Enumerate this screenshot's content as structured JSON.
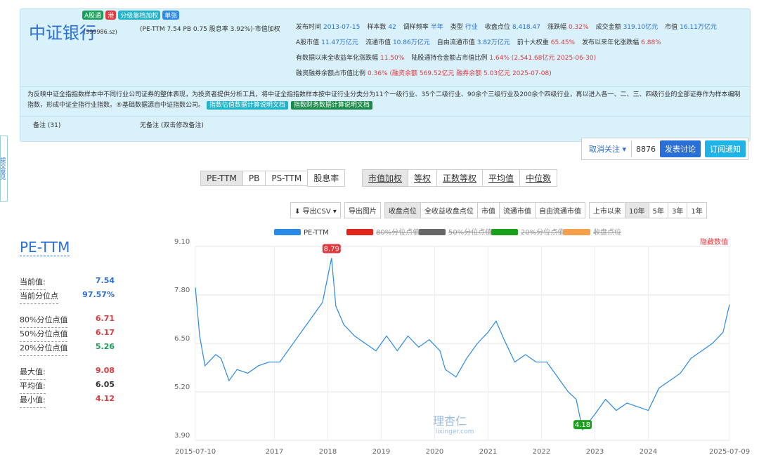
{
  "header": {
    "title": "中证银行",
    "code": "(399986.sz)",
    "badges": [
      {
        "text": "A股通",
        "color": "#1aa05a"
      },
      {
        "text": "港",
        "color": "#e0393e"
      },
      {
        "text": "分级靠档加权",
        "color": "#20b3c9"
      },
      {
        "text": "单张",
        "color": "#2e8ae6"
      }
    ],
    "summary": "(PE-TTM 7.54  PB 0.75  股息率 3.92%)·市值加权",
    "items": [
      {
        "label": "发布时间",
        "value": "2013-07-15"
      },
      {
        "label": "样本数",
        "value": "42"
      },
      {
        "label": "调样频率",
        "value": "半年"
      },
      {
        "label": "类型",
        "value": "行业"
      },
      {
        "label": "收盘点位",
        "value": "8,418.47"
      },
      {
        "label": "涨跌幅",
        "value": "0.32%"
      },
      {
        "label": "成交金额",
        "value": "319.10亿元"
      },
      {
        "label": "市值",
        "value": "16.11万亿元"
      },
      {
        "label": "A股市值",
        "value": "11.47万亿元"
      },
      {
        "label": "流通市值",
        "value": "10.86万亿元"
      },
      {
        "label": "自由流通市值",
        "value": "3.82万亿元"
      },
      {
        "label": "前十大权重",
        "value": "65.45%"
      },
      {
        "label": "发布以来年化涨跌幅",
        "value": "6.88%"
      },
      {
        "label": "有数据以来全收益年化涨跌幅",
        "value": "11.50%"
      },
      {
        "label": "陆股通持仓金额占市值比例",
        "value": "1.64% (2,541.68亿元  2025-06-30)"
      },
      {
        "label": "融资融券余额占市值比例",
        "value": "0.36% (融资余额 569.52亿元  融券余额 5.03亿元  2025-07-08)"
      }
    ],
    "description": "为反映中证全指指数样本中不同行业公司证券的整体表现，为投资者提供分析工具，将中证全指指数样本按中证行业分类分为11个一级行业、35个二级行业、90余个三级行业及200余个四级行业，再以进入各一、二、三、四级行业的全部证券作为样本编制指数，形成中证全指行业指数。®基础数据源自中证指数公司。",
    "docs": [
      "指数估值数据计算说明文档",
      "指数财务数据计算说明文档"
    ],
    "note": "备注 (31)",
    "no_note": "无备注 (双击修改备注)"
  },
  "sidebar": "提交意见",
  "actions": {
    "follow": "取消关注 ▾",
    "count": "8876",
    "discuss": "发表讨论",
    "subscribe": "订阅通知"
  },
  "metric_tabs": [
    "PE-TTM",
    "PB",
    "PS-TTM",
    "股息率"
  ],
  "weight_tabs": [
    "市值加权",
    "等权",
    "正数等权",
    "平均值",
    "中位数"
  ],
  "toolbar": {
    "export_csv": "⬇ 导出CSV ▾",
    "export_img": "导出图片",
    "overlay": [
      "收盘点位",
      "全收益收盘点位",
      "市值",
      "流通市值",
      "自由流通市值"
    ],
    "ranges": [
      "上市以来",
      "10年",
      "5年",
      "3年",
      "1年"
    ]
  },
  "stats": {
    "title": "PE-TTM",
    "rows": [
      {
        "label": "当前值:",
        "value": "7.54",
        "color": "#2a6fd6"
      },
      {
        "label": "当前分位点",
        "value": "97.57%",
        "color": "#2a6fd6"
      },
      {
        "label": "80%分位点值",
        "value": "6.71",
        "color": "#e0393e"
      },
      {
        "label": "50%分位点值",
        "value": "6.17",
        "color": "#e0393e"
      },
      {
        "label": "20%分位点值",
        "value": "5.26",
        "color": "#1aa05a"
      },
      {
        "label": "最大值:",
        "value": "9.08",
        "color": "#e0393e"
      },
      {
        "label": "平均值:",
        "value": "6.05",
        "color": "#333"
      },
      {
        "label": "最小值:",
        "value": "4.12",
        "color": "#e0393e"
      }
    ]
  },
  "chart_data": {
    "type": "line",
    "hide_values": "隐藏数值",
    "watermark": "理杏仁",
    "watermark_url": "lixinger.com",
    "legend": [
      {
        "name": "PE-TTM",
        "color": "#2a8ae6",
        "hidden": false
      },
      {
        "name": "80%分位点值",
        "color": "#e0251b",
        "hidden": true
      },
      {
        "name": "50%分位点值",
        "color": "#666666",
        "hidden": true
      },
      {
        "name": "20%分位点值",
        "color": "#1aa01a",
        "hidden": true
      },
      {
        "name": "收盘点位",
        "color": "#f5a04a",
        "hidden": true
      }
    ],
    "x": [
      2015.52,
      2015.6,
      2015.7,
      2015.9,
      2016.0,
      2016.15,
      2016.3,
      2016.5,
      2016.7,
      2016.9,
      2017.1,
      2017.3,
      2017.5,
      2017.7,
      2017.9,
      2018.07,
      2018.15,
      2018.3,
      2018.5,
      2018.7,
      2018.9,
      2019.1,
      2019.3,
      2019.5,
      2019.7,
      2019.9,
      2020.1,
      2020.2,
      2020.4,
      2020.6,
      2020.8,
      2021.0,
      2021.15,
      2021.3,
      2021.5,
      2021.7,
      2021.9,
      2022.1,
      2022.3,
      2022.5,
      2022.65,
      2022.77,
      2023.0,
      2023.2,
      2023.4,
      2023.6,
      2023.8,
      2024.0,
      2024.2,
      2024.4,
      2024.6,
      2024.8,
      2025.0,
      2025.2,
      2025.4,
      2025.52
    ],
    "series": [
      {
        "name": "PE-TTM",
        "color": "#2a8ae6",
        "values": [
          8.0,
          6.7,
          5.9,
          6.2,
          6.1,
          5.5,
          5.8,
          5.7,
          5.9,
          6.0,
          6.0,
          6.4,
          6.8,
          7.2,
          7.6,
          8.79,
          7.5,
          7.0,
          6.7,
          6.5,
          6.3,
          6.7,
          6.3,
          6.7,
          6.4,
          6.6,
          6.3,
          5.8,
          5.6,
          6.1,
          6.5,
          6.8,
          7.1,
          6.6,
          6.0,
          6.2,
          6.0,
          6.0,
          5.6,
          5.2,
          5.0,
          4.18,
          4.6,
          5.0,
          4.7,
          4.9,
          4.8,
          4.7,
          5.3,
          5.5,
          5.7,
          6.1,
          6.3,
          6.5,
          6.8,
          7.54
        ]
      }
    ],
    "annotations": [
      {
        "x": 2018.07,
        "value": 8.79,
        "color": "#e0393e"
      },
      {
        "x": 2022.77,
        "value": 4.18,
        "color": "#1aa01a"
      }
    ],
    "xlim": [
      2015.52,
      2025.52
    ],
    "ylim": [
      3.9,
      9.1
    ],
    "xticks": [
      {
        "value": 2015.52,
        "label": "2015-07-10"
      },
      2017,
      2018,
      2019,
      2020,
      2021,
      2022,
      2023,
      2024,
      {
        "value": 2025.52,
        "label": "2025-07-09"
      }
    ],
    "yticks": [
      {
        "value": 3.9,
        "label": "3.90"
      },
      {
        "value": 5.2,
        "label": "5.20"
      },
      {
        "value": 6.5,
        "label": "6.50"
      },
      {
        "value": 7.8,
        "label": "7.80"
      },
      {
        "value": 9.1,
        "label": "9.10"
      }
    ],
    "grid": true
  }
}
